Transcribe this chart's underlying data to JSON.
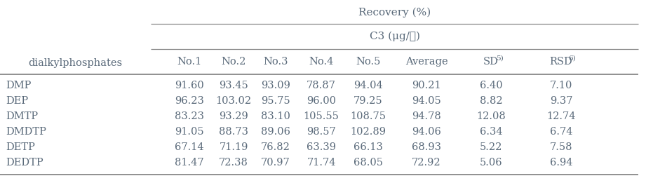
{
  "title_row1": "Recovery (%)",
  "title_row2": "C3 (μg/ℓ)",
  "col_header_left": "dialkylphosphates",
  "col_headers_main": [
    "No.1",
    "No.2",
    "No.3",
    "No.4",
    "No.5",
    "Average",
    "SD",
    "RSD"
  ],
  "col_super": [
    "",
    "",
    "",
    "",
    "",
    "",
    "5)",
    "6)"
  ],
  "rows": [
    [
      "DMP",
      "91.60",
      "93.45",
      "93.09",
      "78.87",
      "94.04",
      "90.21",
      "6.40",
      "7.10"
    ],
    [
      "DEP",
      "96.23",
      "103.02",
      "95.75",
      "96.00",
      "79.25",
      "94.05",
      "8.82",
      "9.37"
    ],
    [
      "DMTP",
      "83.23",
      "93.29",
      "83.10",
      "105.55",
      "108.75",
      "94.78",
      "12.08",
      "12.74"
    ],
    [
      "DMDTP",
      "91.05",
      "88.73",
      "89.06",
      "98.57",
      "102.89",
      "94.06",
      "6.34",
      "6.74"
    ],
    [
      "DETP",
      "67.14",
      "71.19",
      "76.82",
      "63.39",
      "66.13",
      "68.93",
      "5.22",
      "7.58"
    ],
    [
      "DEDTP",
      "81.47",
      "72.38",
      "70.97",
      "71.74",
      "68.05",
      "72.92",
      "5.06",
      "6.94"
    ]
  ],
  "font_color": "#5a6a7a",
  "line_color": "#888888",
  "bg_color": "#ffffff",
  "fontsize": 10.5
}
